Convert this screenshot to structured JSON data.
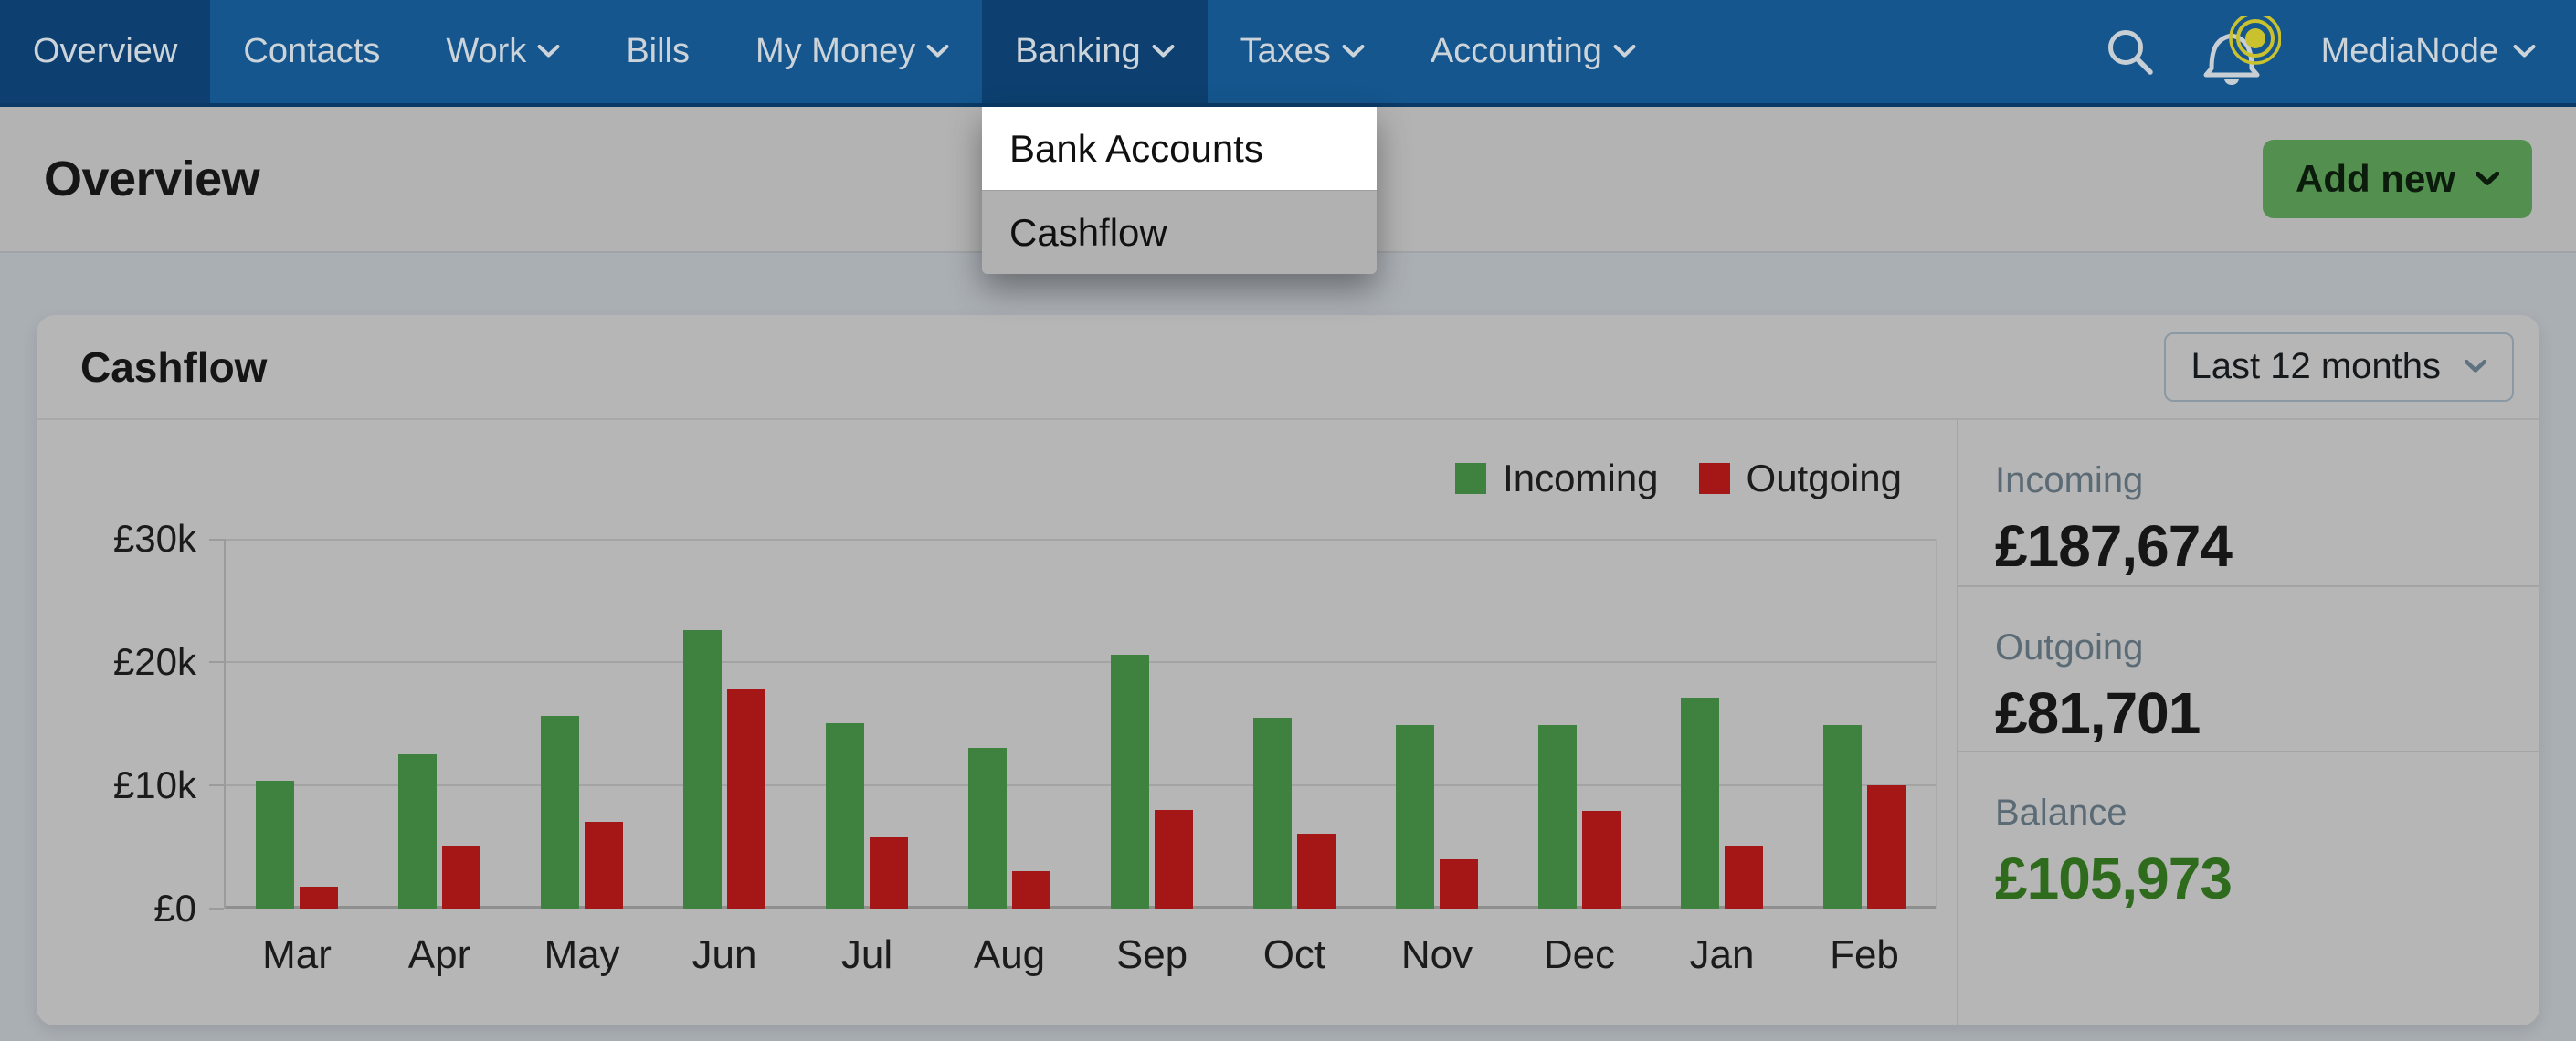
{
  "nav": {
    "items": [
      {
        "label": "Overview",
        "active": true,
        "dropdown": false
      },
      {
        "label": "Contacts",
        "active": false,
        "dropdown": false
      },
      {
        "label": "Work",
        "active": false,
        "dropdown": true
      },
      {
        "label": "Bills",
        "active": false,
        "dropdown": false
      },
      {
        "label": "My Money",
        "active": false,
        "dropdown": true
      },
      {
        "label": "Banking",
        "active": true,
        "dropdown": true,
        "menu_open": true
      },
      {
        "label": "Taxes",
        "active": false,
        "dropdown": true
      },
      {
        "label": "Accounting",
        "active": false,
        "dropdown": true
      }
    ],
    "search_icon": "search-icon",
    "notification_icon": "bell-icon",
    "notification_active": true,
    "account_label": "MediaNode"
  },
  "banking_menu": {
    "items": [
      {
        "label": "Bank Accounts",
        "highlighted": true
      },
      {
        "label": "Cashflow",
        "highlighted": false
      }
    ]
  },
  "header": {
    "title": "Overview",
    "add_new_label": "Add new"
  },
  "cashflow_card": {
    "title": "Cashflow",
    "period_value": "Last 12 months",
    "summary": [
      {
        "label": "Incoming",
        "value": "£187,674",
        "emphasis": "dark"
      },
      {
        "label": "Outgoing",
        "value": "£81,701",
        "emphasis": "dark"
      },
      {
        "label": "Balance",
        "value": "£105,973",
        "emphasis": "green"
      }
    ]
  },
  "chart_data": {
    "type": "bar",
    "title": "Cashflow",
    "categories": [
      "Mar",
      "Apr",
      "May",
      "Jun",
      "Jul",
      "Aug",
      "Sep",
      "Oct",
      "Nov",
      "Dec",
      "Jan",
      "Feb"
    ],
    "series": [
      {
        "name": "Incoming",
        "color": "#3f8240",
        "values": [
          10400,
          12500,
          15600,
          22600,
          15000,
          13000,
          20600,
          15500,
          14900,
          14900,
          17100,
          14900
        ]
      },
      {
        "name": "Outgoing",
        "color": "#a51717",
        "values": [
          1800,
          5100,
          7000,
          17800,
          5800,
          3000,
          8000,
          6100,
          4000,
          7900,
          5000,
          10000
        ]
      }
    ],
    "xlabel": "",
    "ylabel": "£",
    "ylim": [
      0,
      30000
    ],
    "y_ticks": [
      {
        "label": "£0",
        "value": 0
      },
      {
        "label": "£10k",
        "value": 10000
      },
      {
        "label": "£20k",
        "value": 20000
      },
      {
        "label": "£30k",
        "value": 30000
      }
    ],
    "grid": true,
    "legend_position": "top-right"
  },
  "colors": {
    "nav_bg": "#15568e",
    "nav_active": "#0d4070",
    "accent_green": "#53904f",
    "bar_green": "#3f8240",
    "bar_red": "#a51717",
    "balance_green": "#2e6b1c",
    "notification_yellow": "#c9c22e"
  }
}
